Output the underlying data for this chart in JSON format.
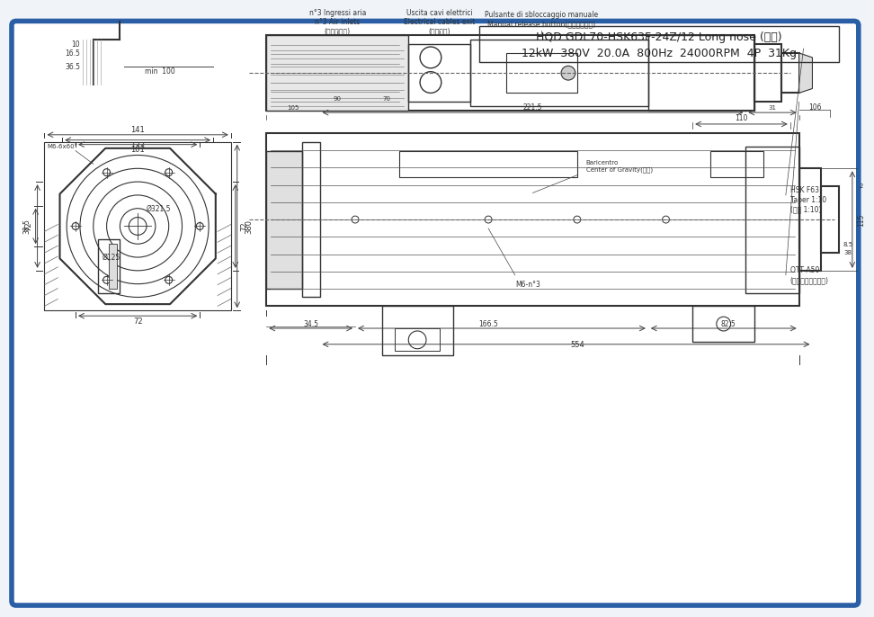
{
  "bg_color": "#f0f4f8",
  "border_color": "#2a5fa5",
  "line_color": "#333333",
  "dim_color": "#444444",
  "title_line1": "HQD GDL70-HSK63F-24Z/12 Long nose (长轴)",
  "title_line2": "12kW  380V  20.0A  800Hz  24000RPM  4P  31Kg",
  "label_air": "n°3 Ingressi aria\nn°3 Air inlets\n(进气口气口)",
  "label_cable": "Uscita cavi elettrici\nElectrical cables exit\n(电缆出口)",
  "label_button": "Pulsante di sbloccaggio manuale\nManual release button(手动松刀按鈕)",
  "label_ott": "OTT A50\n(卡盘系列拉刀机构)",
  "label_hsk": "HSK F63\nTaper 1:10\n(锥度 1:10)",
  "label_gravity": "Baricentro\nCenter of Gravity(重心)",
  "label_m6": "M6-n°3",
  "label_m6bolt": "M6-6x60°"
}
